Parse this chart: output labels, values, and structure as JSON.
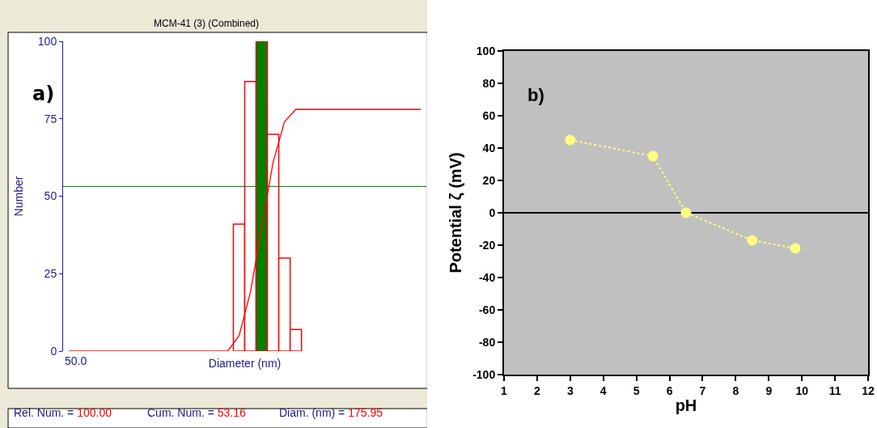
{
  "chart_data": [
    {
      "type": "bar",
      "title": "MCM-41 (3) (Combined)",
      "xlabel": "Diameter (nm)",
      "ylabel": "Number",
      "categories": [
        null,
        null,
        null,
        null,
        null,
        null,
        null,
        null,
        null,
        null,
        null,
        null,
        null,
        null,
        null,
        null,
        null,
        null,
        null,
        null,
        null,
        null,
        null,
        null,
        null,
        null,
        null,
        null,
        null,
        null,
        null,
        null
      ],
      "series": [
        {
          "color": "#ff0000",
          "colors": [
            "#ffffff",
            "#ffffff",
            "#ffffff",
            "#ffffff",
            "#ffffff",
            "#ffffff",
            "#ffffff",
            "#ffffff",
            "#ffffff",
            "#ffffff",
            "#ffffff",
            "#ffffff",
            "#ffffff",
            "#ffffff",
            "#ffffff",
            "#ffffff",
            "#ffffff",
            "#008000",
            "#ffffff",
            "#ffffff",
            "#ffffff",
            "#ffffff",
            "#ffffff",
            "#ffffff",
            "#ffffff",
            "#ffffff",
            "#ffffff",
            "#ffffff",
            "#ffffff",
            "#ffffff",
            "#ffffff",
            "#ffffff"
          ],
          "values": [
            null,
            null,
            null,
            null,
            null,
            null,
            null,
            null,
            null,
            null,
            null,
            null,
            null,
            null,
            null,
            41,
            87,
            100,
            70,
            30,
            7,
            null,
            null,
            null,
            null,
            null,
            null,
            null,
            null,
            null,
            null,
            null
          ]
        },
        {
          "type": "line",
          "color": "#ff0000",
          "values": [
            0,
            0,
            0,
            0,
            0,
            0,
            0,
            0,
            0,
            0,
            0,
            0,
            0,
            0,
            0,
            5,
            19,
            40,
            61,
            74,
            78,
            78,
            78,
            78,
            78,
            78,
            78,
            78,
            78,
            78,
            78,
            78
          ]
        }
      ],
      "ylim": [
        0,
        100
      ],
      "yticks": [
        0,
        25,
        50,
        75,
        100
      ],
      "tick_labels": "y",
      "grid": false,
      "marker": "none",
      "line_style": "solid",
      "ref_lines": [
        {
          "axis": "y",
          "value": 53.16,
          "color": "#008000"
        }
      ],
      "annotations": [
        "a)",
        "50.0",
        "Rel. Num. = 100.00",
        "Cum. Num. = 53.16",
        "Diam. (nm) = 175.95"
      ]
    },
    {
      "type": "line",
      "xlabel": "pH",
      "ylabel": "Potential ζ (mV)",
      "x": [
        3,
        5.5,
        6.5,
        8.5,
        9.8
      ],
      "series": [
        {
          "color": "#ffff80",
          "values": [
            45,
            35,
            0,
            -17,
            -22
          ]
        }
      ],
      "xlim": [
        1,
        12
      ],
      "xticks": [
        1,
        2,
        3,
        4,
        5,
        6,
        7,
        8,
        9,
        10,
        11,
        12
      ],
      "ylim": [
        -100,
        100
      ],
      "yticks": [
        -100,
        -80,
        -60,
        -40,
        -20,
        0,
        20,
        40,
        60,
        80,
        100
      ],
      "grid": false,
      "marker": "circle",
      "line_style": "dotted",
      "ref_lines": [
        {
          "axis": "y",
          "value": 0,
          "color": "#000000"
        }
      ],
      "annotations": [
        "b)"
      ]
    }
  ]
}
